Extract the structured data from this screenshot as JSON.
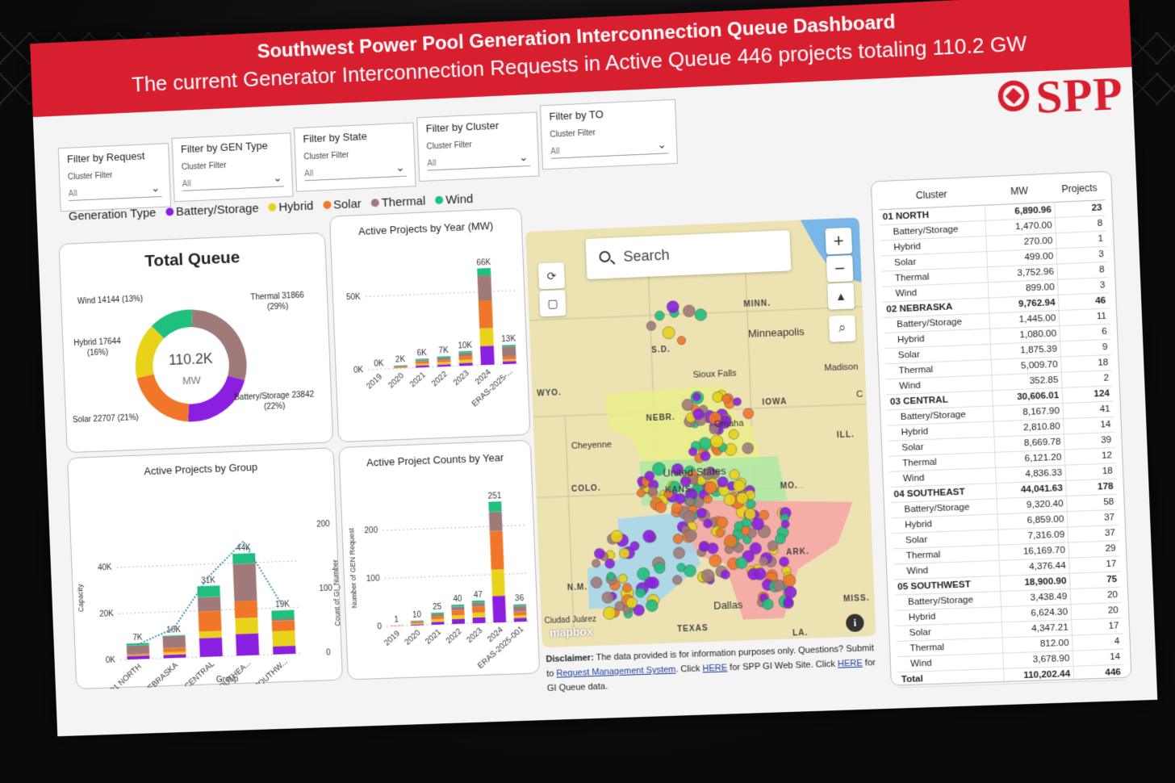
{
  "header": {
    "title": "Southwest Power Pool Generation Interconnection Queue Dashboard",
    "subtitle": "The current Generator Interconnection Requests in Active Queue 446 projects totaling 110.2 GW",
    "logo_text": "SPP"
  },
  "filters": [
    {
      "title": "Filter by Request",
      "sub": "Cluster Filter",
      "value": "All"
    },
    {
      "title": "Filter by GEN Type",
      "sub": "Cluster Filter",
      "value": "All"
    },
    {
      "title": "Filter by State",
      "sub": "Cluster Filter",
      "value": "All"
    },
    {
      "title": "Filter by Cluster",
      "sub": "Cluster Filter",
      "value": "All"
    },
    {
      "title": "Filter by TO",
      "sub": "Cluster Filter",
      "value": "All"
    }
  ],
  "legend": {
    "title": "Generation Type",
    "items": [
      {
        "label": "Battery/Storage",
        "color": "#8b1fe0"
      },
      {
        "label": "Hybrid",
        "color": "#e8d21a"
      },
      {
        "label": "Solar",
        "color": "#f0762a"
      },
      {
        "label": "Thermal",
        "color": "#a07a78"
      },
      {
        "label": "Wind",
        "color": "#1fbf7f"
      }
    ]
  },
  "total_queue": {
    "title": "Total Queue",
    "center_value": "110.2K",
    "center_unit": "MW",
    "labels": {
      "wind": "Wind 14144 (13%)",
      "thermal": "Thermal 31866 (29%)",
      "hybrid": "Hybrid 17644 (16%)",
      "battery": "Battery/Storage 23842 (22%)",
      "solar": "Solar 22707 (21%)"
    }
  },
  "chart_data": [
    {
      "type": "pie",
      "title": "Total Queue",
      "categories": [
        "Thermal",
        "Battery/Storage",
        "Solar",
        "Hybrid",
        "Wind"
      ],
      "values": [
        31866,
        23842,
        22707,
        17644,
        14144
      ],
      "colors": [
        "#a07a78",
        "#8b1fe0",
        "#f0762a",
        "#e8d21a",
        "#1fbf7f"
      ]
    },
    {
      "type": "bar",
      "title": "Active Projects by Year (MW)",
      "categories": [
        "2019",
        "2020",
        "2021",
        "2022",
        "2023",
        "2024",
        "ERAS-2025-..."
      ],
      "data_labels": [
        "0K",
        "2K",
        "6K",
        "7K",
        "10K",
        "66K",
        "13K"
      ],
      "series": [
        {
          "name": "Battery/Storage",
          "values": [
            0,
            200,
            1500,
            1500,
            2000,
            13000,
            2000
          ]
        },
        {
          "name": "Hybrid",
          "values": [
            0,
            300,
            1000,
            1500,
            2000,
            12000,
            1000
          ]
        },
        {
          "name": "Solar",
          "values": [
            0,
            500,
            1500,
            1500,
            2500,
            19000,
            2000
          ]
        },
        {
          "name": "Thermal",
          "values": [
            0,
            700,
            1200,
            1600,
            2500,
            17000,
            7000
          ]
        },
        {
          "name": "Wind",
          "values": [
            0,
            300,
            800,
            900,
            1000,
            5000,
            1000
          ]
        }
      ],
      "yticks": [
        "0K",
        "50K"
      ],
      "ylim": [
        0,
        66000
      ]
    },
    {
      "type": "bar",
      "title": "Active Projects by Group",
      "xlabel": "Group",
      "ylabel": "Capacity",
      "y2label": "Count of GI_Number",
      "categories": [
        "01 NORTH",
        "02 NEBRASKA",
        "03 CENTRAL",
        "04 SOUTHEA...",
        "05 SOUTHW..."
      ],
      "data_labels": [
        "7K",
        "10K",
        "31K",
        "44K",
        "19K"
      ],
      "series": [
        {
          "name": "Battery/Storage",
          "values": [
            1470,
            1445,
            8168,
            9320,
            3438
          ]
        },
        {
          "name": "Hybrid",
          "values": [
            270,
            1080,
            2811,
            6859,
            6624
          ]
        },
        {
          "name": "Solar",
          "values": [
            499,
            1875,
            8670,
            7316,
            4347
          ]
        },
        {
          "name": "Thermal",
          "values": [
            3753,
            5010,
            6121,
            16170,
            812
          ]
        },
        {
          "name": "Wind",
          "values": [
            899,
            353,
            4836,
            4376,
            3679
          ]
        }
      ],
      "counts": [
        23,
        46,
        124,
        178,
        75
      ],
      "yticks": [
        "0K",
        "20K",
        "40K"
      ],
      "y2ticks": [
        "0",
        "100",
        "200"
      ],
      "ylim": [
        0,
        45000
      ]
    },
    {
      "type": "bar",
      "title": "Active Project Counts by Year",
      "ylabel": "Number of GEN Request",
      "categories": [
        "2019",
        "2020",
        "2021",
        "2022",
        "2023",
        "2024",
        "ERAS-2025-001"
      ],
      "data_labels": [
        "1",
        "10",
        "25",
        "40",
        "47",
        "251",
        "36"
      ],
      "series": [
        {
          "name": "Battery/Storage",
          "values": [
            0,
            2,
            6,
            10,
            12,
            55,
            8
          ]
        },
        {
          "name": "Hybrid",
          "values": [
            0,
            2,
            5,
            8,
            10,
            55,
            5
          ]
        },
        {
          "name": "Solar",
          "values": [
            1,
            3,
            6,
            10,
            12,
            80,
            8
          ]
        },
        {
          "name": "Thermal",
          "values": [
            0,
            2,
            5,
            8,
            9,
            40,
            12
          ]
        },
        {
          "name": "Wind",
          "values": [
            0,
            1,
            3,
            4,
            4,
            21,
            3
          ]
        }
      ],
      "yticks": [
        "0",
        "100",
        "200"
      ],
      "ylim": [
        0,
        251
      ]
    }
  ],
  "charts": {
    "year_mw_title": "Active Projects by Year (MW)",
    "group_title": "Active Projects by Group",
    "counts_title": "Active Project Counts by Year"
  },
  "map": {
    "search_placeholder": "Search",
    "labels": {
      "minn": "MINN.",
      "minneapolis": "Minneapolis",
      "sd": "S.D.",
      "sioux_falls": "Sioux Falls",
      "madison": "Madison",
      "wyo": "WYO.",
      "iowa": "IOWA",
      "nebr": "NEBR.",
      "cheyenne": "Cheyenne",
      "omaha": "Omaha",
      "ill": "ILL.",
      "colo": "COLO.",
      "united_states": "United States",
      "kans": "KANS.",
      "mo": "MO.",
      "ark": "ARK.",
      "nm": "N.M.",
      "dallas": "Dallas",
      "miss": "MISS.",
      "texas": "TEXAS",
      "la": "LA.",
      "ciudad_juarez": "Ciudad Juárez",
      "c": "C"
    },
    "attribution": "mapbox"
  },
  "disclaimer": {
    "label": "Disclaimer:",
    "text1": "The data provided is for information purposes only. Questions? Submit to",
    "link1": "Request Management System",
    "text2": ". Click",
    "link2": "HERE",
    "text3": "for SPP GI Web Site. Click",
    "link3": "HERE",
    "text4": "for GI Queue data."
  },
  "table": {
    "headers": [
      "Cluster",
      "MW",
      "Projects"
    ],
    "rows": [
      {
        "type": "group",
        "name": "01 NORTH",
        "mw": "6,890.96",
        "projects": "23"
      },
      {
        "type": "sub",
        "name": "Battery/Storage",
        "mw": "1,470.00",
        "projects": "8"
      },
      {
        "type": "sub",
        "name": "Hybrid",
        "mw": "270.00",
        "projects": "1"
      },
      {
        "type": "sub",
        "name": "Solar",
        "mw": "499.00",
        "projects": "3"
      },
      {
        "type": "sub",
        "name": "Thermal",
        "mw": "3,752.96",
        "projects": "8"
      },
      {
        "type": "sub",
        "name": "Wind",
        "mw": "899.00",
        "projects": "3"
      },
      {
        "type": "group",
        "name": "02 NEBRASKA",
        "mw": "9,762.94",
        "projects": "46"
      },
      {
        "type": "sub",
        "name": "Battery/Storage",
        "mw": "1,445.00",
        "projects": "11"
      },
      {
        "type": "sub",
        "name": "Hybrid",
        "mw": "1,080.00",
        "projects": "6"
      },
      {
        "type": "sub",
        "name": "Solar",
        "mw": "1,875.39",
        "projects": "9"
      },
      {
        "type": "sub",
        "name": "Thermal",
        "mw": "5,009.70",
        "projects": "18"
      },
      {
        "type": "sub",
        "name": "Wind",
        "mw": "352.85",
        "projects": "2"
      },
      {
        "type": "group",
        "name": "03 CENTRAL",
        "mw": "30,606.01",
        "projects": "124"
      },
      {
        "type": "sub",
        "name": "Battery/Storage",
        "mw": "8,167.90",
        "projects": "41"
      },
      {
        "type": "sub",
        "name": "Hybrid",
        "mw": "2,810.80",
        "projects": "14"
      },
      {
        "type": "sub",
        "name": "Solar",
        "mw": "8,669.78",
        "projects": "39"
      },
      {
        "type": "sub",
        "name": "Thermal",
        "mw": "6,121.20",
        "projects": "12"
      },
      {
        "type": "sub",
        "name": "Wind",
        "mw": "4,836.33",
        "projects": "18"
      },
      {
        "type": "group",
        "name": "04 SOUTHEAST",
        "mw": "44,041.63",
        "projects": "178"
      },
      {
        "type": "sub",
        "name": "Battery/Storage",
        "mw": "9,320.40",
        "projects": "58"
      },
      {
        "type": "sub",
        "name": "Hybrid",
        "mw": "6,859.00",
        "projects": "37"
      },
      {
        "type": "sub",
        "name": "Solar",
        "mw": "7,316.09",
        "projects": "37"
      },
      {
        "type": "sub",
        "name": "Thermal",
        "mw": "16,169.70",
        "projects": "29"
      },
      {
        "type": "sub",
        "name": "Wind",
        "mw": "4,376.44",
        "projects": "17"
      },
      {
        "type": "group",
        "name": "05 SOUTHWEST",
        "mw": "18,900.90",
        "projects": "75"
      },
      {
        "type": "sub",
        "name": "Battery/Storage",
        "mw": "3,438.49",
        "projects": "20"
      },
      {
        "type": "sub",
        "name": "Hybrid",
        "mw": "6,624.30",
        "projects": "20"
      },
      {
        "type": "sub",
        "name": "Solar",
        "mw": "4,347.21",
        "projects": "17"
      },
      {
        "type": "sub",
        "name": "Thermal",
        "mw": "812.00",
        "projects": "4"
      },
      {
        "type": "sub",
        "name": "Wind",
        "mw": "3,678.90",
        "projects": "14"
      },
      {
        "type": "total",
        "name": "Total",
        "mw": "110,202.44",
        "projects": "446"
      }
    ]
  }
}
